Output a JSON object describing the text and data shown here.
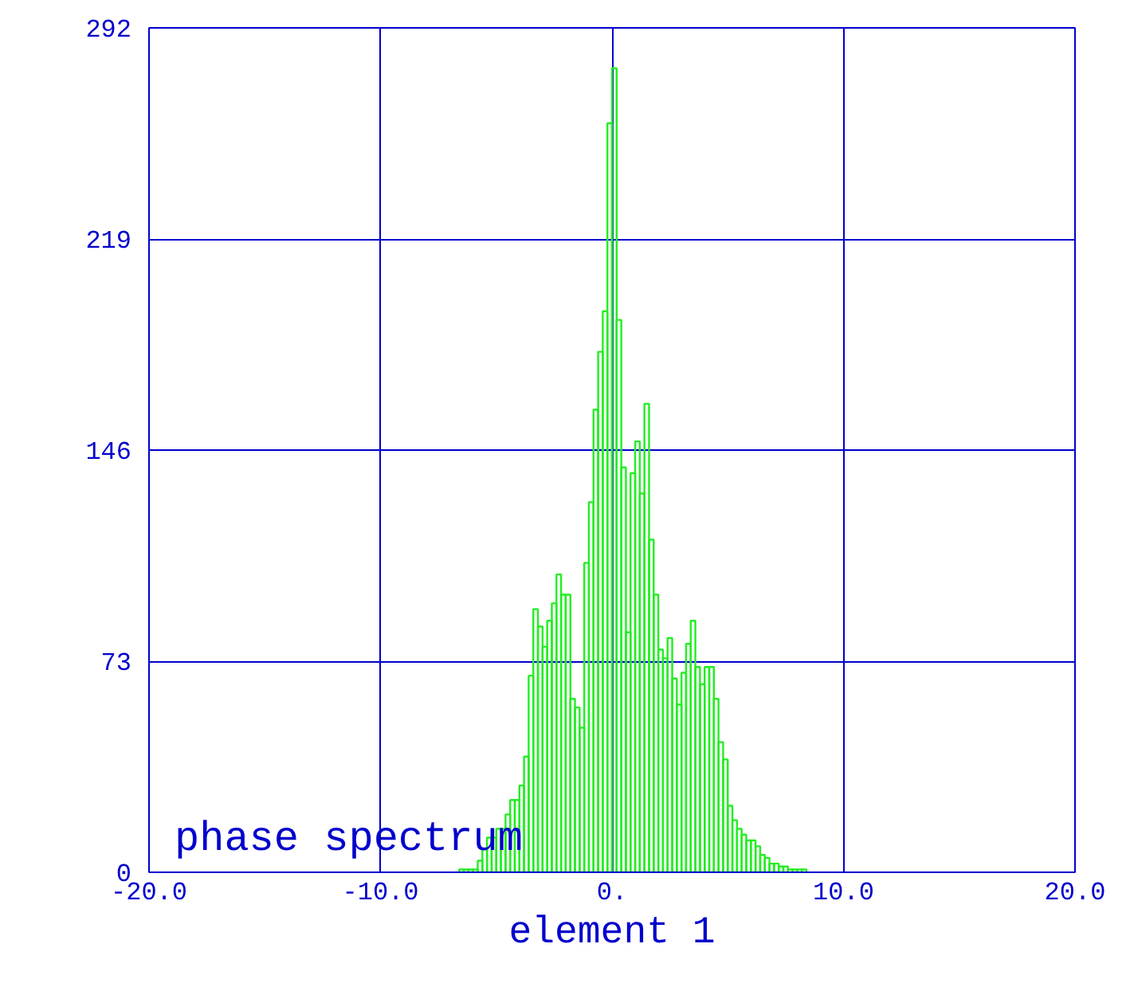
{
  "chart_data": {
    "type": "histogram",
    "title": "phase spectrum",
    "xlabel": "element 1",
    "bins": [
      -6.6,
      -6.4,
      -6.2,
      -6.0,
      -5.8,
      -5.6,
      -5.4,
      -5.2,
      -5.0,
      -4.8,
      -4.6,
      -4.4,
      -4.2,
      -4.0,
      -3.8,
      -3.6,
      -3.4,
      -3.2,
      -3.0,
      -2.8,
      -2.6,
      -2.4,
      -2.2,
      -2.0,
      -1.8,
      -1.6,
      -1.4,
      -1.2,
      -1.0,
      -0.8,
      -0.6,
      -0.4,
      -0.2,
      0.0,
      0.2,
      0.4,
      0.6,
      0.8,
      1.0,
      1.2,
      1.4,
      1.6,
      1.8,
      2.0,
      2.2,
      2.4,
      2.6,
      2.8,
      3.0,
      3.2,
      3.4,
      3.6,
      3.8,
      4.0,
      4.2,
      4.4,
      4.6,
      4.8,
      5.0,
      5.2,
      5.4,
      5.6,
      5.8,
      6.0,
      6.2,
      6.4,
      6.6,
      6.8,
      7.0,
      7.2,
      7.4,
      7.6,
      7.8,
      8.0,
      8.2,
      8.4
    ],
    "values": [
      1,
      1,
      1,
      1,
      4,
      8,
      12,
      12,
      15,
      15,
      20,
      25,
      25,
      30,
      40,
      68,
      91,
      85,
      78,
      87,
      93,
      103,
      96,
      96,
      60,
      57,
      50,
      107,
      128,
      160,
      180,
      194,
      259,
      278,
      191,
      140,
      83,
      138,
      149,
      131,
      162,
      115,
      96,
      77,
      74,
      81,
      67,
      58,
      69,
      79,
      87,
      71,
      65,
      71,
      71,
      60,
      45,
      39,
      23,
      18,
      15,
      13,
      11,
      11,
      9,
      6,
      5,
      3,
      3,
      2,
      2,
      1,
      1,
      1,
      1
    ],
    "color": "#22ee22",
    "xlim": [
      -20,
      20
    ],
    "ylim": [
      0,
      292
    ],
    "xticks": [
      {
        "value": -20,
        "label": "-20.0"
      },
      {
        "value": -10,
        "label": "-10.0"
      },
      {
        "value": 0,
        "label": "0."
      },
      {
        "value": 10,
        "label": "10.0"
      },
      {
        "value": 20,
        "label": "20.0"
      }
    ],
    "yticks": [
      0,
      73,
      146,
      219,
      292
    ],
    "grid": true
  }
}
